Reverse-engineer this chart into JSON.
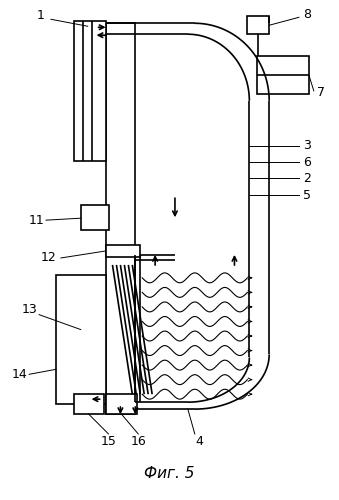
{
  "bg_color": "#ffffff",
  "line_color": "#000000",
  "figure_label": "Фиг. 5",
  "lw": 1.2,
  "thin_lw": 0.7
}
